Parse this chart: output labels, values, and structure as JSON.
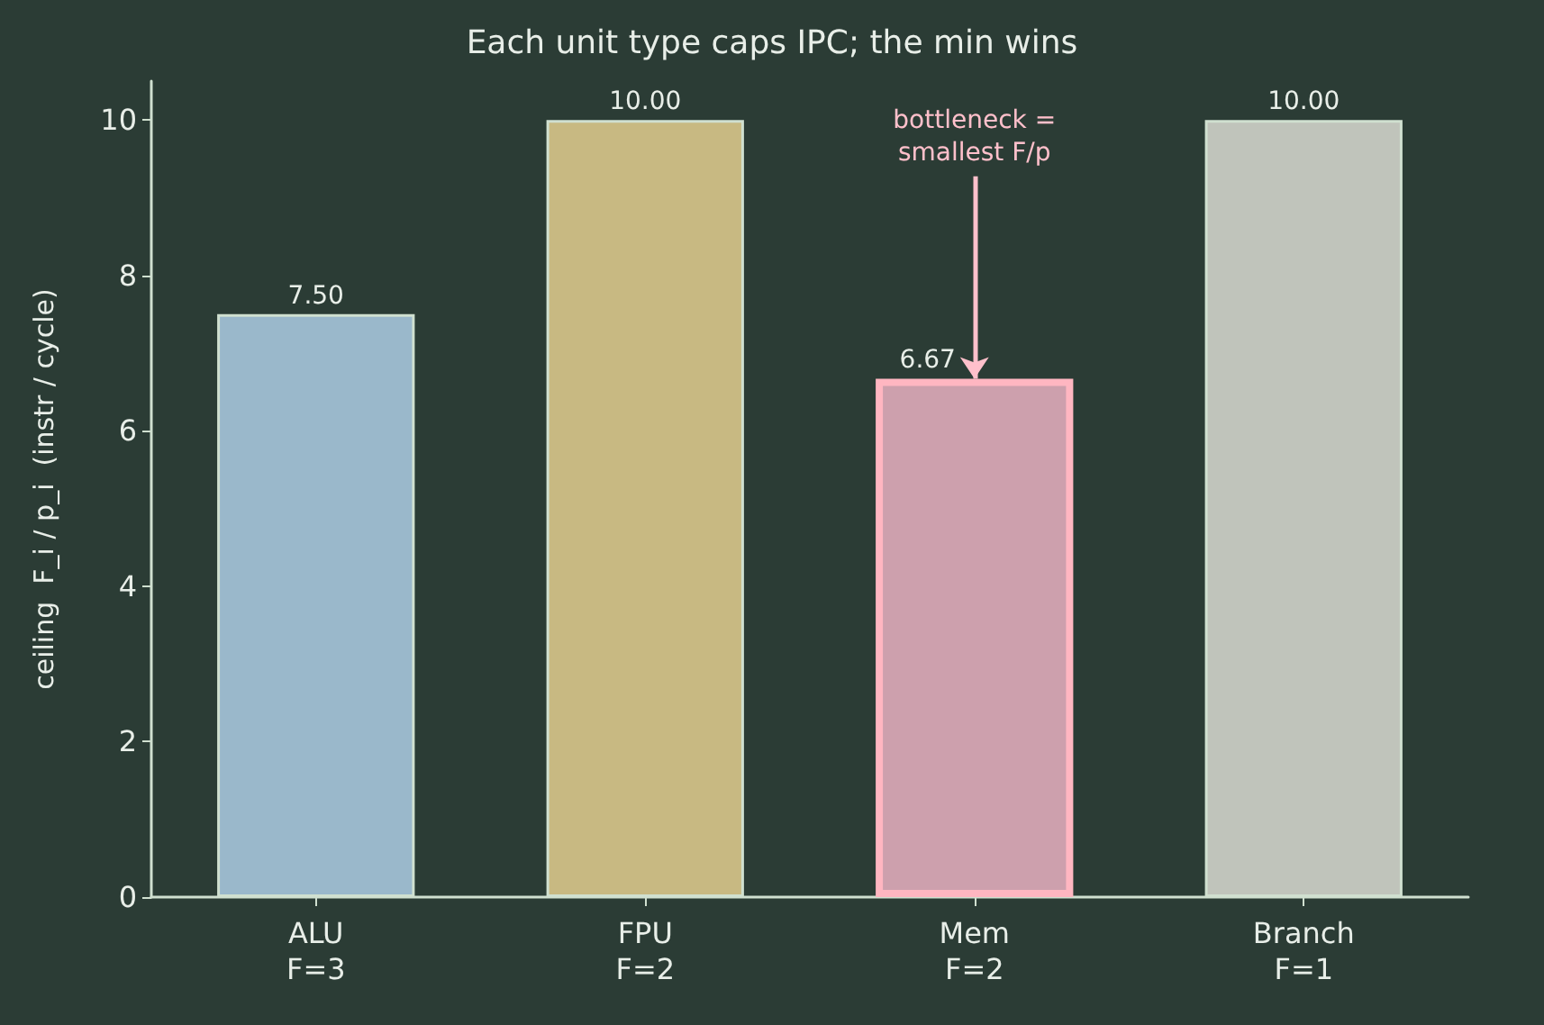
{
  "chart_data": {
    "type": "bar",
    "title": "Each unit type caps IPC; the min wins",
    "ylabel": "ceiling  F_i / p_i  (instr / cycle)",
    "categories": [
      "ALU\nF=3",
      "FPU\nF=2",
      "Mem\nF=2",
      "Branch\nF=1"
    ],
    "values": [
      7.5,
      10,
      6.67,
      10
    ],
    "value_labels": [
      "7.50",
      "10.00",
      "6.67",
      "10.00"
    ],
    "colors": [
      "#9ab8cb",
      "#c8b982",
      "#cda0ad",
      "#c0c4bb"
    ],
    "ylim": [
      0,
      10.5
    ],
    "yticks": [
      0,
      2,
      4,
      6,
      8,
      10
    ],
    "grid": false,
    "annotations": [
      {
        "text": "bottleneck =\nsmallest F/p",
        "x": "Mem\nF=2",
        "y": 6.67
      }
    ]
  }
}
